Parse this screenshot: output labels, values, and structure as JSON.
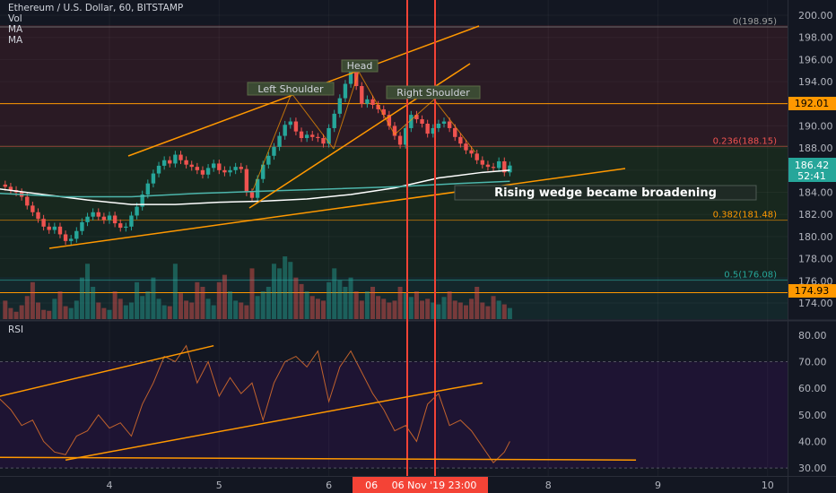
{
  "header": {
    "title": "Ethereum / U.S. Dollar, 60, BITSTAMP",
    "indicators": [
      "Vol",
      "MA",
      "MA"
    ]
  },
  "rsi": {
    "title": "RSI"
  },
  "colors": {
    "background": "#131722",
    "up": "#26a69a",
    "down": "#ef5350",
    "trendline": "#ff9800",
    "vline": "#f44336",
    "rsi_panel": "#1e1433",
    "ma_white": "#ffffff",
    "ma_teal": "#4db6ac"
  },
  "chart_data": [
    {
      "type": "line",
      "title": "Ethereum / U.S. Dollar, 60, BITSTAMP",
      "price_axis": {
        "ticks": [
          "200.00",
          "198.00",
          "196.00",
          "194.00",
          "192.00",
          "190.00",
          "188.00",
          "186.00",
          "184.00",
          "182.00",
          "180.00",
          "178.00",
          "176.00",
          "174.00"
        ],
        "ylim": [
          173.2,
          200.9
        ]
      },
      "time_axis": {
        "ticks": [
          "4",
          "5",
          "6",
          "7",
          "8",
          "9",
          "10"
        ],
        "crosshair_label": "06 Nov '19   23:00",
        "crosshair_partial": "06 N"
      },
      "price_labels": {
        "current": "186.42",
        "countdown": "52:41",
        "level_192": "192.01",
        "level_174": "174.93"
      },
      "fibonacci": [
        {
          "label": "0(198.95)",
          "value": 198.95
        },
        {
          "label": "0.236(188.15)",
          "value": 188.15
        },
        {
          "label": "0.382(181.48)",
          "value": 181.48
        },
        {
          "label": "0.5(176.08)",
          "value": 176.08
        }
      ],
      "annotations": {
        "left_shoulder": "Left Shoulder",
        "head": "Head",
        "right_shoulder": "Right Shoulder",
        "note": "Rising wedge became broadening"
      },
      "series": [
        {
          "kind": "close",
          "x": [
            3.05,
            3.1,
            3.15,
            3.2,
            3.25,
            3.3,
            3.35,
            3.4,
            3.45,
            3.5,
            3.55,
            3.6,
            3.65,
            3.7,
            3.75,
            3.8,
            3.85,
            3.9,
            3.95,
            4.0,
            4.05,
            4.1,
            4.15,
            4.2,
            4.25,
            4.3,
            4.35,
            4.4,
            4.45,
            4.5,
            4.55,
            4.6,
            4.65,
            4.7,
            4.75,
            4.8,
            4.85,
            4.9,
            4.95,
            5.0,
            5.05,
            5.1,
            5.15,
            5.2,
            5.25,
            5.3,
            5.35,
            5.4,
            5.45,
            5.5,
            5.55,
            5.6,
            5.65,
            5.7,
            5.75,
            5.8,
            5.85,
            5.9,
            5.95,
            6.0,
            6.05,
            6.1,
            6.15,
            6.2,
            6.25,
            6.3,
            6.35,
            6.4,
            6.45,
            6.5,
            6.55,
            6.6,
            6.65,
            6.7,
            6.75,
            6.8,
            6.85,
            6.9,
            6.95,
            7.0,
            7.05,
            7.1,
            7.15,
            7.2,
            7.25,
            7.3,
            7.35,
            7.4,
            7.45,
            7.5,
            7.55,
            7.6,
            7.65
          ],
          "y": [
            184.5,
            184.2,
            184.0,
            183.6,
            182.8,
            182.2,
            181.6,
            180.9,
            180.6,
            180.9,
            180.2,
            179.6,
            179.8,
            180.5,
            181.3,
            181.8,
            182.2,
            181.8,
            181.5,
            181.9,
            181.2,
            180.8,
            180.9,
            181.9,
            182.7,
            183.8,
            184.8,
            185.7,
            186.4,
            186.9,
            186.6,
            187.4,
            186.9,
            186.5,
            186.3,
            186.0,
            185.6,
            186.2,
            186.6,
            186.0,
            185.8,
            186.0,
            186.3,
            186.1,
            184.0,
            183.5,
            185.2,
            186.5,
            187.3,
            188.1,
            189.1,
            190.1,
            190.4,
            189.5,
            188.9,
            189.2,
            189.0,
            188.9,
            188.4,
            189.8,
            191.1,
            192.5,
            193.8,
            194.9,
            193.6,
            192.0,
            192.4,
            191.9,
            191.5,
            191.0,
            190.0,
            189.1,
            188.3,
            189.8,
            191.0,
            190.6,
            190.2,
            189.3,
            189.8,
            190.2,
            190.4,
            189.8,
            189.0,
            188.4,
            187.8,
            187.5,
            186.9,
            186.5,
            186.3,
            186.2,
            186.8,
            185.8,
            186.42
          ]
        },
        {
          "kind": "ma_white",
          "x": [
            3.0,
            3.4,
            3.8,
            4.2,
            4.6,
            5.0,
            5.4,
            5.8,
            6.2,
            6.6,
            7.0,
            7.4,
            7.65
          ],
          "y": [
            184.3,
            183.8,
            183.3,
            182.9,
            182.9,
            183.1,
            183.2,
            183.4,
            183.8,
            184.4,
            185.3,
            185.8,
            186.0
          ]
        },
        {
          "kind": "ma_teal",
          "x": [
            3.0,
            3.6,
            4.2,
            4.8,
            5.4,
            6.0,
            6.6,
            7.2,
            7.65
          ],
          "y": [
            183.9,
            183.6,
            183.6,
            183.9,
            184.1,
            184.3,
            184.5,
            184.8,
            185.0
          ]
        }
      ],
      "volume": [
        20,
        12,
        8,
        15,
        25,
        40,
        18,
        10,
        9,
        22,
        30,
        14,
        12,
        20,
        45,
        60,
        35,
        18,
        12,
        10,
        30,
        22,
        15,
        18,
        40,
        25,
        30,
        45,
        22,
        15,
        14,
        60,
        28,
        20,
        18,
        40,
        35,
        22,
        15,
        40,
        48,
        30,
        20,
        18,
        15,
        55,
        25,
        30,
        35,
        60,
        55,
        68,
        62,
        45,
        38,
        30,
        25,
        22,
        20,
        40,
        55,
        42,
        35,
        45,
        30,
        20,
        30,
        35,
        25,
        22,
        18,
        20,
        35,
        28,
        24,
        30,
        20,
        22,
        18,
        16,
        24,
        30,
        20,
        18,
        15,
        22,
        35,
        18,
        14,
        25,
        20,
        16,
        12
      ]
    },
    {
      "type": "line",
      "title": "RSI",
      "ylim": [
        27,
        85
      ],
      "yticks": [
        "80.00",
        "70.00",
        "60.00",
        "50.00",
        "40.00",
        "30.00"
      ],
      "series": [
        {
          "name": "RSI",
          "x": [
            3.0,
            3.1,
            3.2,
            3.3,
            3.4,
            3.5,
            3.6,
            3.7,
            3.8,
            3.9,
            4.0,
            4.1,
            4.2,
            4.3,
            4.4,
            4.5,
            4.6,
            4.7,
            4.8,
            4.9,
            5.0,
            5.1,
            5.2,
            5.3,
            5.4,
            5.5,
            5.6,
            5.7,
            5.8,
            5.9,
            6.0,
            6.1,
            6.2,
            6.3,
            6.4,
            6.5,
            6.6,
            6.7,
            6.8,
            6.9,
            7.0,
            7.1,
            7.2,
            7.3,
            7.4,
            7.5,
            7.6,
            7.65
          ],
          "y": [
            56,
            52,
            46,
            48,
            40,
            36,
            35,
            42,
            44,
            50,
            45,
            47,
            42,
            54,
            62,
            72,
            70,
            76,
            62,
            70,
            57,
            64,
            58,
            62,
            48,
            62,
            70,
            72,
            68,
            74,
            55,
            68,
            74,
            66,
            58,
            52,
            44,
            46,
            40,
            54,
            58,
            46,
            48,
            44,
            38,
            32,
            36,
            40
          ]
        }
      ],
      "trendlines": [
        {
          "x": [
            3.0,
            4.95
          ],
          "y": [
            57,
            76
          ]
        },
        {
          "x": [
            3.6,
            7.4
          ],
          "y": [
            33,
            62
          ]
        },
        {
          "x": [
            3.0,
            8.8
          ],
          "y": [
            34,
            33
          ]
        }
      ]
    }
  ]
}
